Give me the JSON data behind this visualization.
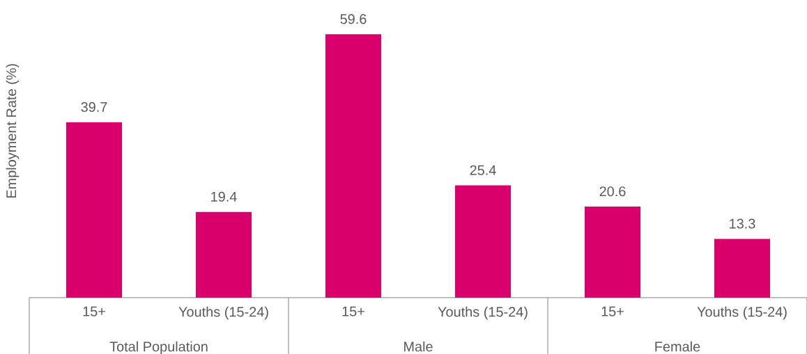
{
  "chart_data": {
    "type": "bar",
    "ylabel": "Employment Rate (%)",
    "categories": [
      "15+",
      "Youths (15-24)",
      "15+",
      "Youths (15-24)",
      "15+",
      "Youths (15-24)"
    ],
    "values": [
      39.7,
      19.4,
      59.6,
      25.4,
      20.6,
      13.3
    ],
    "color": "#d9006c",
    "data_labels": true,
    "annotations": [
      "Total Population",
      "Male",
      "Female"
    ]
  }
}
